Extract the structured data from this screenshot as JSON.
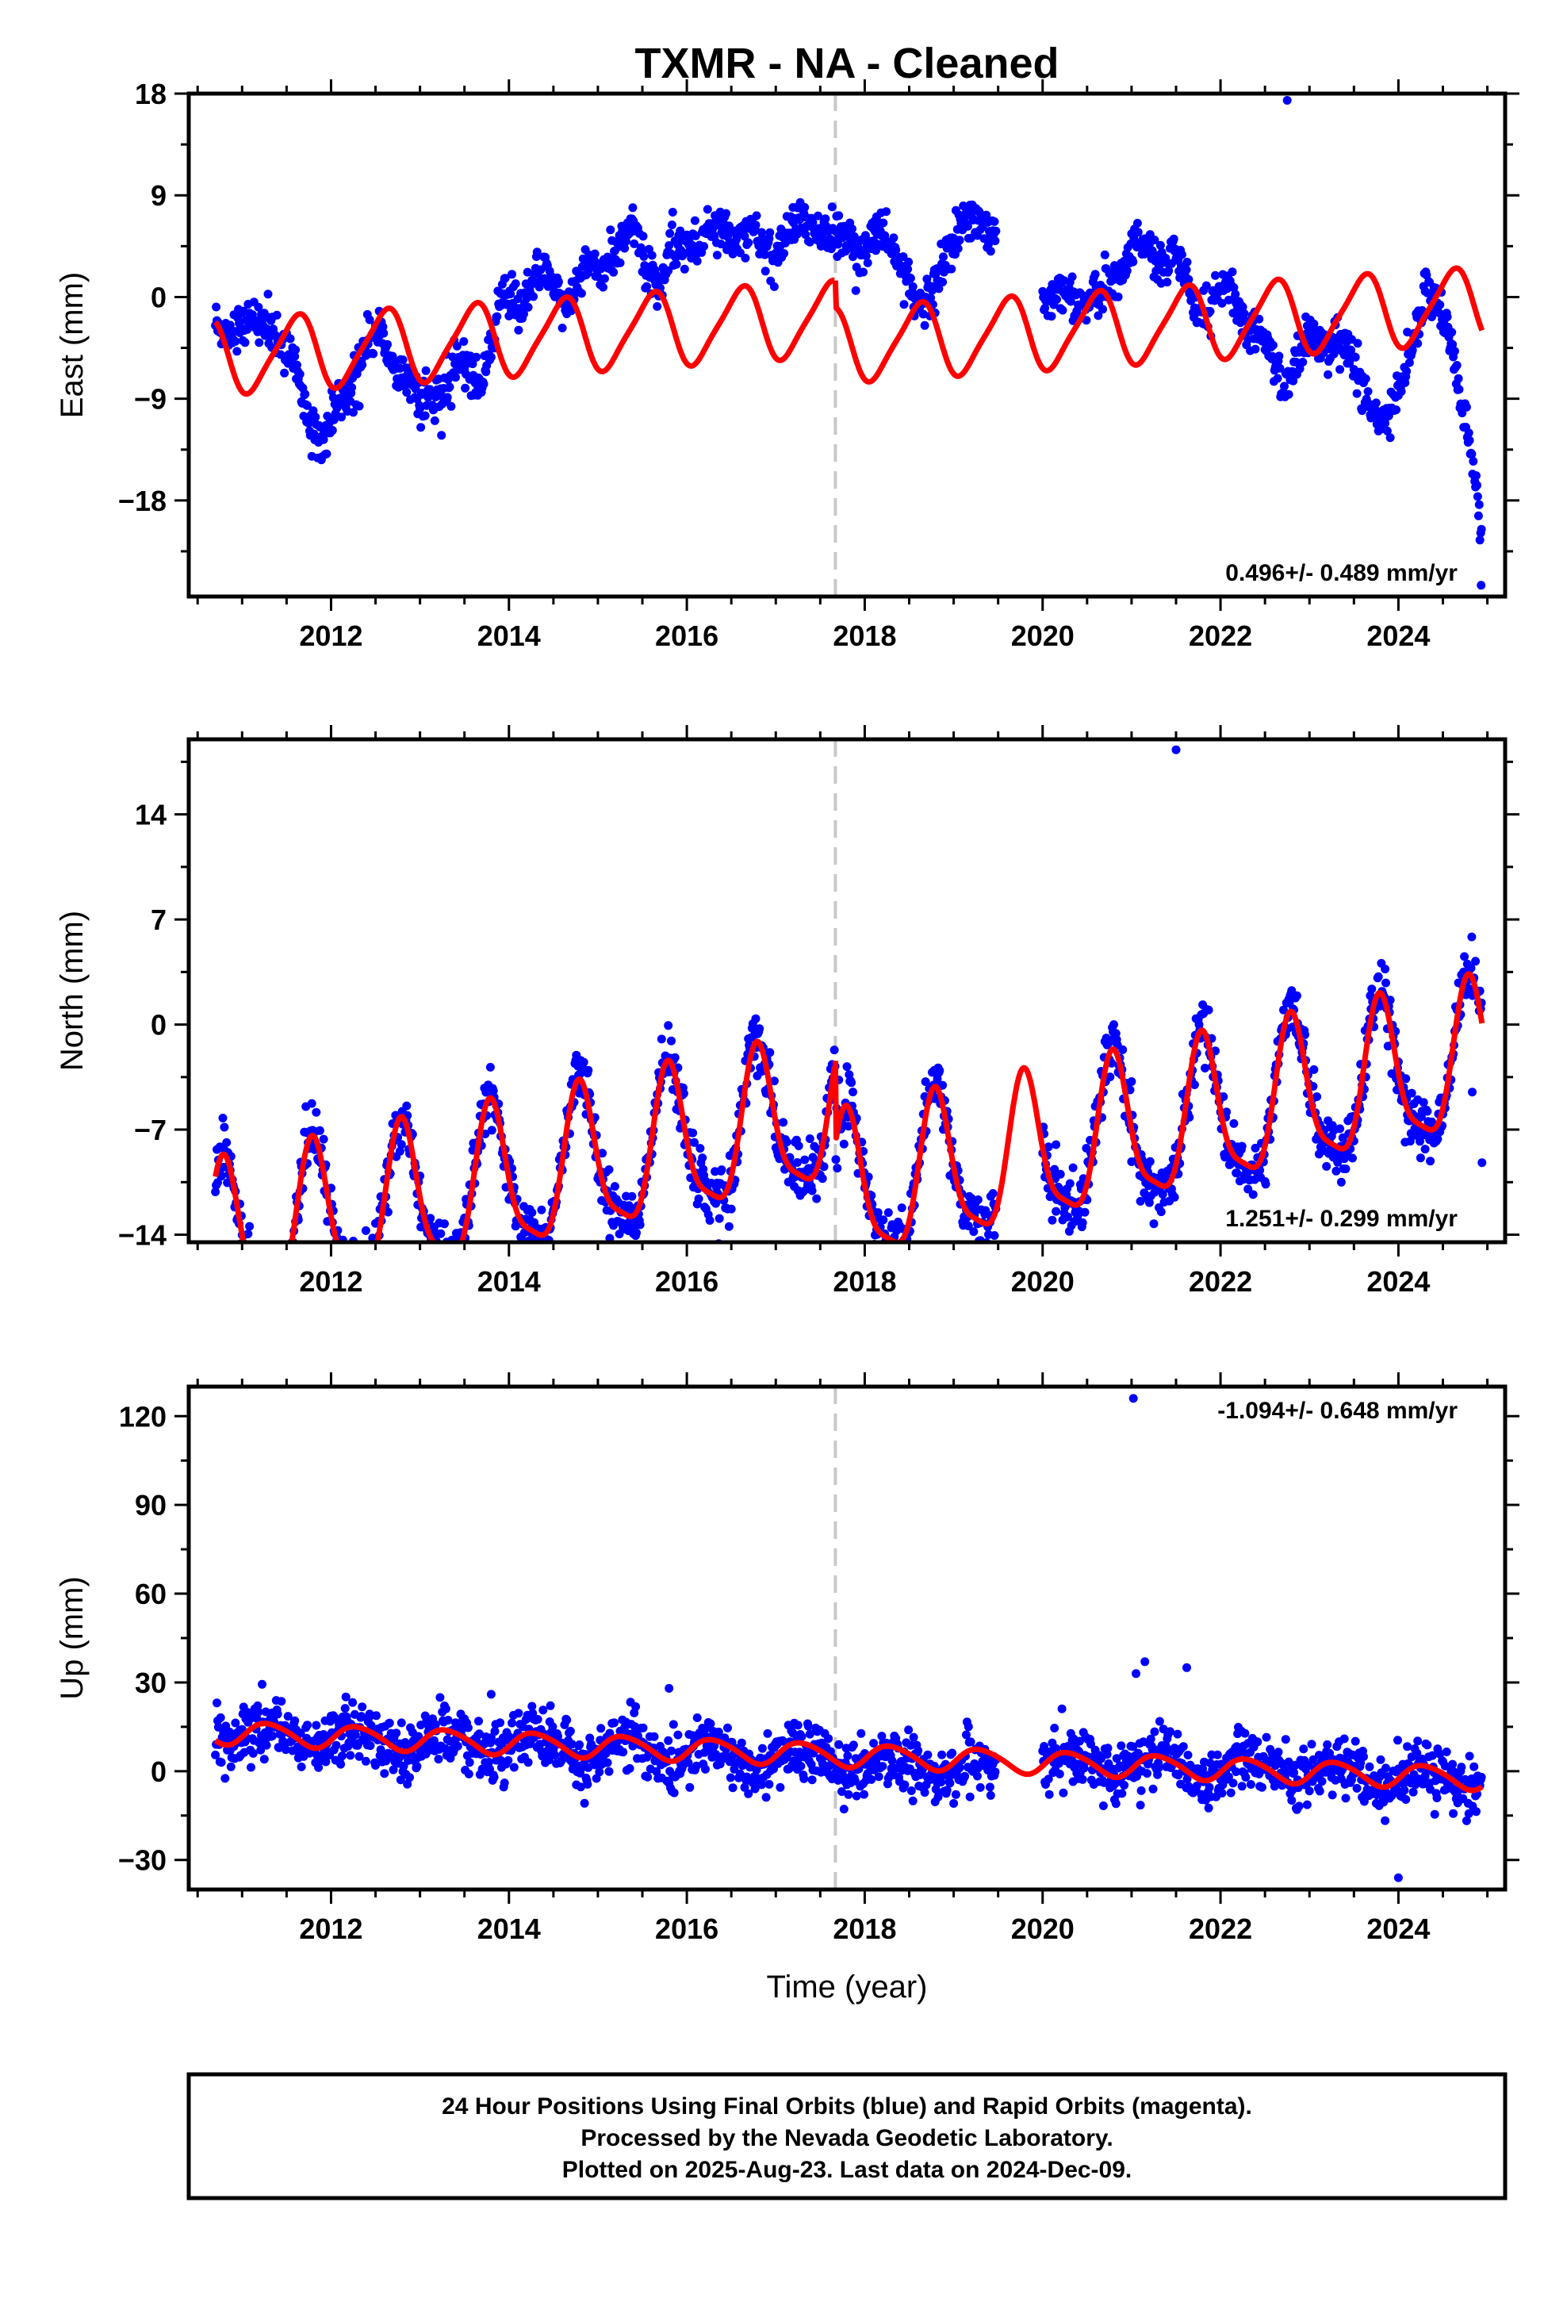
{
  "title": "TXMR  - NA - Cleaned",
  "colors": {
    "points": "#0000ff",
    "fit": "#ff0000",
    "event_line": "#c8c8c8",
    "frame": "#000000"
  },
  "xlabel": "Time (year)",
  "footer": {
    "line1": "24 Hour Positions Using Final Orbits (blue) and Rapid Orbits (magenta).",
    "line2": "Processed by the Nevada Geodetic Laboratory.",
    "line3": "Plotted on 2025-Aug-23. Last data on 2024-Dec-09."
  },
  "chart_data": [
    {
      "type": "scatter",
      "component": "east",
      "ylabel": "East (mm)",
      "rate_text": "0.496+/- 0.489 mm/yr",
      "xlim": [
        2010.4,
        2025.2
      ],
      "ylim": [
        -26.5,
        18
      ],
      "x_ticks": [
        2012,
        2014,
        2016,
        2018,
        2020,
        2022,
        2024
      ],
      "x_tick_labels": [
        "2012",
        "2014",
        "2016",
        "2018",
        "2020",
        "2022",
        "2024"
      ],
      "y_ticks": [
        -18,
        -9,
        0,
        9,
        18
      ],
      "y_tick_labels": [
        "−18",
        "−9",
        "0",
        "9",
        "18"
      ],
      "event_line_x": 2017.67,
      "data_range": [
        2010.7,
        2024.94
      ],
      "gap": [
        2019.48,
        2020.0
      ],
      "fit_break_x": 2017.67,
      "fit": {
        "offset_before": -1.9,
        "offset_after": -1.0,
        "step": -2.4,
        "rate": 0.496,
        "amp_annual": 3.2,
        "phase_annual": 0.35,
        "amp_semi": 0.6,
        "phase_semi": 0.1
      },
      "signal_knots": [
        [
          2010.7,
          -2.2
        ],
        [
          2011.0,
          -2.8
        ],
        [
          2011.3,
          -1.6
        ],
        [
          2011.6,
          -7.0
        ],
        [
          2011.9,
          -13.5
        ],
        [
          2012.1,
          -9.5
        ],
        [
          2012.4,
          -4.0
        ],
        [
          2012.7,
          -5.0
        ],
        [
          2013.0,
          -9.8
        ],
        [
          2013.4,
          -6.5
        ],
        [
          2013.7,
          -6.8
        ],
        [
          2013.9,
          -1.5
        ],
        [
          2014.3,
          1.5
        ],
        [
          2014.6,
          0.5
        ],
        [
          2014.8,
          1.2
        ],
        [
          2015.1,
          3.8
        ],
        [
          2015.4,
          5.8
        ],
        [
          2015.7,
          1.5
        ],
        [
          2016.0,
          5.2
        ],
        [
          2016.3,
          5.2
        ],
        [
          2016.6,
          6.4
        ],
        [
          2016.9,
          3.8
        ],
        [
          2017.2,
          6.2
        ],
        [
          2017.5,
          6.7
        ],
        [
          2017.8,
          3.8
        ],
        [
          2018.1,
          5.6
        ],
        [
          2018.4,
          3.5
        ],
        [
          2018.7,
          -1.5
        ],
        [
          2019.0,
          5.8
        ],
        [
          2019.3,
          6.5
        ],
        [
          2019.5,
          6.0
        ],
        [
          2020.0,
          -1.0
        ],
        [
          2020.3,
          0.8
        ],
        [
          2020.6,
          -1.0
        ],
        [
          2020.9,
          3.3
        ],
        [
          2021.2,
          4.3
        ],
        [
          2021.5,
          2.6
        ],
        [
          2021.8,
          -1.2
        ],
        [
          2022.1,
          0.6
        ],
        [
          2022.4,
          -3.8
        ],
        [
          2022.7,
          -7.2
        ],
        [
          2023.0,
          -4.0
        ],
        [
          2023.3,
          -3.5
        ],
        [
          2023.6,
          -8.0
        ],
        [
          2023.9,
          -11.5
        ],
        [
          2024.3,
          0.5
        ],
        [
          2024.6,
          -3.5
        ],
        [
          2024.8,
          -13.0
        ],
        [
          2024.94,
          -22.0
        ]
      ],
      "noise_sd": 1.0,
      "outliers": [
        [
          2022.75,
          17.4
        ],
        [
          2024.93,
          -25.5
        ]
      ]
    },
    {
      "type": "scatter",
      "component": "north",
      "ylabel": "North (mm)",
      "rate_text": "1.251+/- 0.299 mm/yr",
      "xlim": [
        2010.4,
        2025.2
      ],
      "ylim": [
        -14.5,
        19
      ],
      "x_ticks": [
        2012,
        2014,
        2016,
        2018,
        2020,
        2022,
        2024
      ],
      "x_tick_labels": [
        "2012",
        "2014",
        "2016",
        "2018",
        "2020",
        "2022",
        "2024"
      ],
      "y_ticks": [
        -14,
        -7,
        0,
        7,
        14
      ],
      "y_tick_labels": [
        "−14",
        "−7",
        "0",
        "7",
        "14"
      ],
      "event_line_x": 2017.67,
      "data_range": [
        2010.7,
        2024.94
      ],
      "gap": [
        2019.48,
        2020.0
      ],
      "fit_break_x": 2017.67,
      "fit": {
        "offset_before": -6.0,
        "offset_after": -1.5,
        "step": -5.5,
        "rate": 1.251,
        "amp_annual": 4.8,
        "phase_annual": 0.55,
        "amp_semi": 1.2,
        "phase_semi": 0.15
      },
      "signal_knots": [
        [
          2010.7,
          0.0
        ],
        [
          2024.94,
          0.0
        ]
      ],
      "noise_sd": 1.0,
      "outliers": [
        [
          2020.15,
          -8.0
        ],
        [
          2021.0,
          -3.8
        ],
        [
          2024.83,
          -4.5
        ],
        [
          2024.94,
          -9.2
        ],
        [
          2021.5,
          18.3
        ]
      ]
    },
    {
      "type": "scatter",
      "component": "up",
      "ylabel": "Up (mm)",
      "rate_text": "-1.094+/- 0.648 mm/yr",
      "xlim": [
        2010.4,
        2025.2
      ],
      "ylim": [
        -40,
        130
      ],
      "x_ticks": [
        2012,
        2014,
        2016,
        2018,
        2020,
        2022,
        2024
      ],
      "x_tick_labels": [
        "2012",
        "2014",
        "2016",
        "2018",
        "2020",
        "2022",
        "2024"
      ],
      "y_ticks": [
        -30,
        0,
        30,
        60,
        90,
        120
      ],
      "y_tick_labels": [
        "−30",
        "0",
        "30",
        "60",
        "90",
        "120"
      ],
      "event_line_x": 2017.67,
      "data_range": [
        2010.7,
        2024.94
      ],
      "gap": [
        2019.48,
        2020.0
      ],
      "fit_break_x": null,
      "fit": {
        "offset_before": 5.5,
        "offset_after": 5.5,
        "step": 0,
        "rate": -1.094,
        "amp_annual": 3.8,
        "phase_annual": 0.05,
        "amp_semi": 0.5,
        "phase_semi": 0.0
      },
      "signal_knots": [
        [
          2010.7,
          0.0
        ],
        [
          2019.0,
          -3.0
        ],
        [
          2019.4,
          -6.0
        ],
        [
          2020.3,
          0.0
        ],
        [
          2024.94,
          0.0
        ]
      ],
      "noise_sd": 5.0,
      "outliers": [
        [
          2021.02,
          126.0
        ],
        [
          2021.05,
          33.0
        ],
        [
          2021.15,
          37.0
        ],
        [
          2021.62,
          35.0
        ],
        [
          2015.8,
          28.0
        ],
        [
          2024.0,
          -36.0
        ],
        [
          2013.8,
          26.0
        ]
      ]
    }
  ]
}
